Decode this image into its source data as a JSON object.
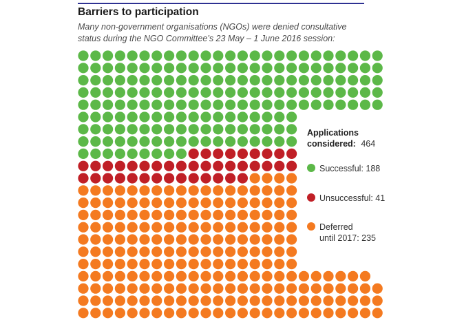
{
  "chart_data": {
    "type": "waffle",
    "title": "Barriers to participation",
    "subtitle": "Many non-government organisations (NGOs) were denied consultative status during the NGO Committee’s 23 May – 1 June 2016 session:",
    "total": {
      "label_line1": "Applications",
      "label_line2": "considered:",
      "value": 464
    },
    "series": [
      {
        "name": "Successful",
        "display": "Successful: 188",
        "value": 188,
        "color": "#5cb848"
      },
      {
        "name": "Unsuccessful",
        "display": "Unsuccessful: 41",
        "value": 41,
        "color": "#c01f26"
      },
      {
        "name": "Deferred until 2017",
        "display_line1": "Deferred",
        "display_line2": "until 2017: 235",
        "value": 235,
        "color": "#f47a20"
      }
    ]
  },
  "colors": {
    "rule": "#2e3192"
  }
}
